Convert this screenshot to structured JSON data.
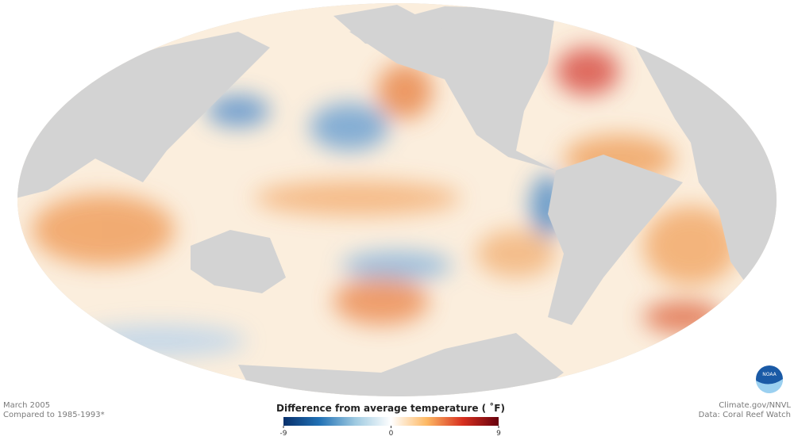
{
  "caption": {
    "date": "March 2005",
    "baseline": "Compared to 1985-1993*"
  },
  "credits": {
    "source": "Climate.gov/NNVL",
    "data": "Data: Coral Reef Watch"
  },
  "logo": {
    "text": "NOAA"
  },
  "legend": {
    "title": "Difference from average temperature ( ˚F)",
    "range": [
      -9,
      9
    ],
    "ticks": [
      -9,
      0,
      9
    ],
    "colors": [
      "#08306b",
      "#2171b5",
      "#9ecae1",
      "#ffffff",
      "#fdb863",
      "#d7301f",
      "#67000d"
    ]
  }
}
